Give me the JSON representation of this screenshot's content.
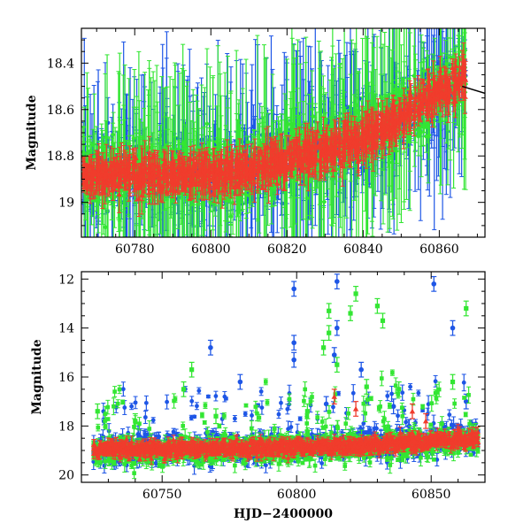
{
  "chart_data": [
    {
      "type": "scatter",
      "panel": "top",
      "title": "",
      "xlabel": "",
      "ylabel": "Magnitude",
      "xlim": [
        60766,
        60872
      ],
      "ylim": [
        19.15,
        18.25
      ],
      "y_inverted": true,
      "grid": false,
      "x_ticks": [
        60780,
        60800,
        60820,
        60840,
        60860
      ],
      "x_tick_labels": [
        "60780",
        "60800",
        "60820",
        "60840",
        "60860"
      ],
      "y_ticks": [
        18.4,
        18.6,
        18.8,
        19
      ],
      "y_tick_labels": [
        "18.4",
        "18.6",
        "18.8",
        "19"
      ],
      "series": [
        {
          "color": "#1e56e6",
          "marker": "circle-with-errorbar",
          "trend": [
            [
              60766,
              18.88
            ],
            [
              60790,
              18.87
            ],
            [
              60810,
              18.86
            ],
            [
              60830,
              18.76
            ],
            [
              60845,
              18.68
            ],
            [
              60857,
              18.55
            ],
            [
              60866,
              18.47
            ]
          ],
          "error_bar_range": [
            0.02,
            0.45
          ]
        },
        {
          "color": "#33e633",
          "marker": "diamond-with-errorbar",
          "trend": [
            [
              60766,
              18.88
            ],
            [
              60790,
              18.87
            ],
            [
              60810,
              18.86
            ],
            [
              60830,
              18.77
            ],
            [
              60845,
              18.68
            ],
            [
              60857,
              18.55
            ],
            [
              60866,
              18.47
            ]
          ],
          "error_bar_range": [
            0.02,
            0.45
          ]
        },
        {
          "color": "#f03c2c",
          "marker": "triangle-with-errorbar",
          "trend": [
            [
              60766,
              18.88
            ],
            [
              60790,
              18.88
            ],
            [
              60810,
              18.86
            ],
            [
              60830,
              18.78
            ],
            [
              60845,
              18.69
            ],
            [
              60857,
              18.55
            ],
            [
              60866,
              18.47
            ]
          ],
          "error_bar_range": [
            0.01,
            0.15
          ]
        }
      ],
      "model_curve": {
        "color": "#000000",
        "points": [
          [
            60866,
            18.5
          ],
          [
            60872,
            18.53
          ]
        ]
      }
    },
    {
      "type": "scatter",
      "panel": "bottom",
      "title": "",
      "xlabel": "HJD−2400000",
      "ylabel": "Magnitude",
      "xlim": [
        60720,
        60870
      ],
      "ylim": [
        20.3,
        11.7
      ],
      "y_inverted": true,
      "grid": false,
      "x_ticks": [
        60750,
        60800,
        60850
      ],
      "x_tick_labels": [
        "60750",
        "60800",
        "60850"
      ],
      "y_ticks": [
        12,
        14,
        16,
        18,
        20
      ],
      "y_tick_labels": [
        "12",
        "14",
        "16",
        "18",
        "20"
      ],
      "series": [
        {
          "color": "#1e56e6",
          "marker": "circle-with-errorbar",
          "trend": [
            [
              60725,
              18.95
            ],
            [
              60760,
              18.92
            ],
            [
              60790,
              18.9
            ],
            [
              60810,
              18.8
            ],
            [
              60830,
              18.75
            ],
            [
              60850,
              18.6
            ],
            [
              60867,
              18.5
            ]
          ],
          "outliers": [
            [
              60768,
              14.8
            ],
            [
              60779,
              16.2
            ],
            [
              60799,
              12.4
            ],
            [
              60799,
              14.6
            ],
            [
              60799,
              15.3
            ],
            [
              60811,
              17.1
            ],
            [
              60814,
              15.1
            ],
            [
              60815,
              12.1
            ],
            [
              60815,
              14.0
            ],
            [
              60824,
              15.7
            ],
            [
              60836,
              17.2
            ],
            [
              60851,
              12.2
            ],
            [
              60858,
              14.0
            ],
            [
              60863,
              17.0
            ]
          ]
        },
        {
          "color": "#33e633",
          "marker": "square-with-errorbar",
          "trend": [
            [
              60725,
              19.0
            ],
            [
              60760,
              19.0
            ],
            [
              60790,
              18.9
            ],
            [
              60810,
              18.85
            ],
            [
              60830,
              18.8
            ],
            [
              60850,
              18.6
            ],
            [
              60867,
              18.5
            ]
          ],
          "outliers": [
            [
              60726,
              17.4
            ],
            [
              60740,
              17.8
            ],
            [
              60758,
              16.5
            ],
            [
              60761,
              15.7
            ],
            [
              60770,
              17.6
            ],
            [
              60804,
              17.4
            ],
            [
              60810,
              14.8
            ],
            [
              60812,
              13.3
            ],
            [
              60812,
              14.2
            ],
            [
              60815,
              15.5
            ],
            [
              60820,
              13.4
            ],
            [
              60822,
              12.6
            ],
            [
              60826,
              16.4
            ],
            [
              60830,
              13.1
            ],
            [
              60832,
              13.7
            ],
            [
              60838,
              16.5
            ],
            [
              60858,
              16.2
            ],
            [
              60863,
              13.2
            ]
          ]
        },
        {
          "color": "#f03c2c",
          "marker": "triangle-with-errorbar",
          "trend": [
            [
              60725,
              18.95
            ],
            [
              60760,
              18.93
            ],
            [
              60790,
              18.9
            ],
            [
              60810,
              18.82
            ],
            [
              60830,
              18.78
            ],
            [
              60850,
              18.6
            ],
            [
              60867,
              18.5
            ]
          ],
          "outliers": [
            [
              60814,
              16.8
            ],
            [
              60822,
              17.3
            ],
            [
              60843,
              17.4
            ],
            [
              60848,
              17.8
            ]
          ]
        }
      ]
    }
  ]
}
